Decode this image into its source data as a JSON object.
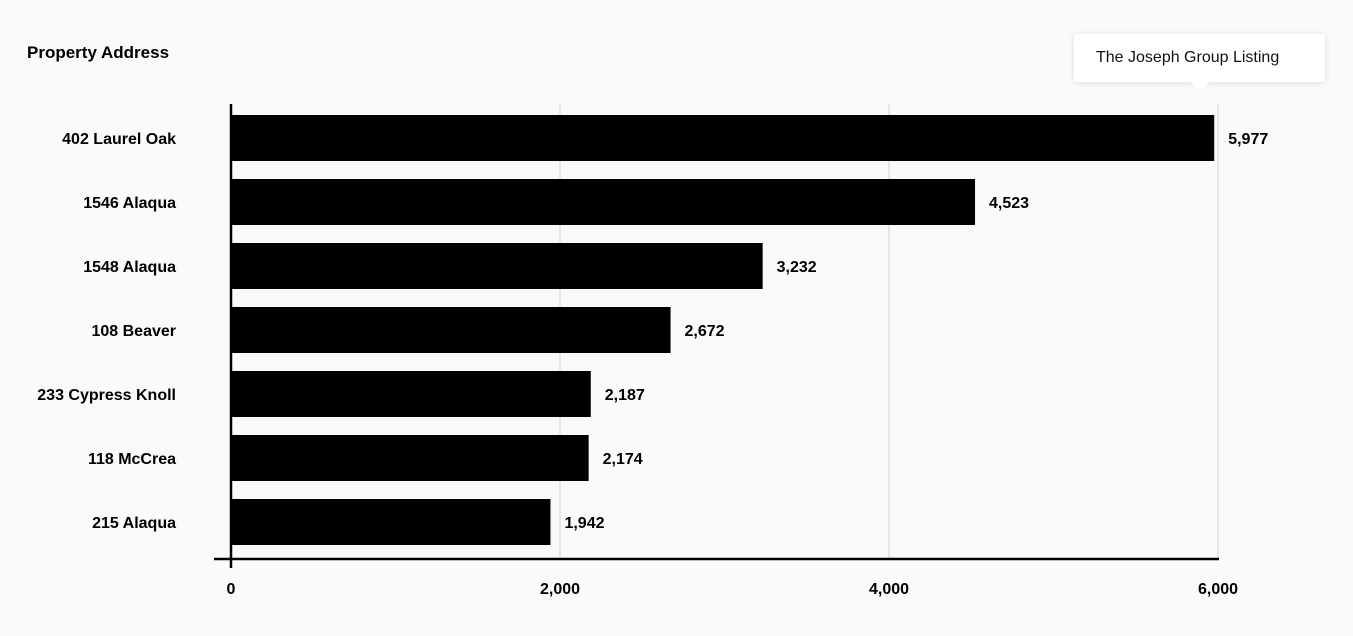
{
  "chart_data": {
    "type": "bar",
    "orientation": "horizontal",
    "ylabel": "Property Address",
    "categories": [
      "402 Laurel Oak",
      "1546 Alaqua",
      "1548 Alaqua",
      "108 Beaver",
      "233 Cypress Knoll",
      "118 McCrea",
      "215 Alaqua"
    ],
    "values": [
      5977,
      4523,
      3232,
      2672,
      2187,
      2174,
      1942
    ],
    "value_labels": [
      "5,977",
      "4,523",
      "3,232",
      "2,672",
      "2,187",
      "2,174",
      "1,942"
    ],
    "xticks": [
      0,
      2000,
      4000,
      6000
    ],
    "xtick_labels": [
      "0",
      "2,000",
      "4,000",
      "6,000"
    ],
    "xlim": [
      0,
      6000
    ],
    "grid": "vertical",
    "bar_color": "#000000",
    "grid_color": "#e6e6e6"
  },
  "tooltip": {
    "text": "The Joseph Group Listing"
  }
}
